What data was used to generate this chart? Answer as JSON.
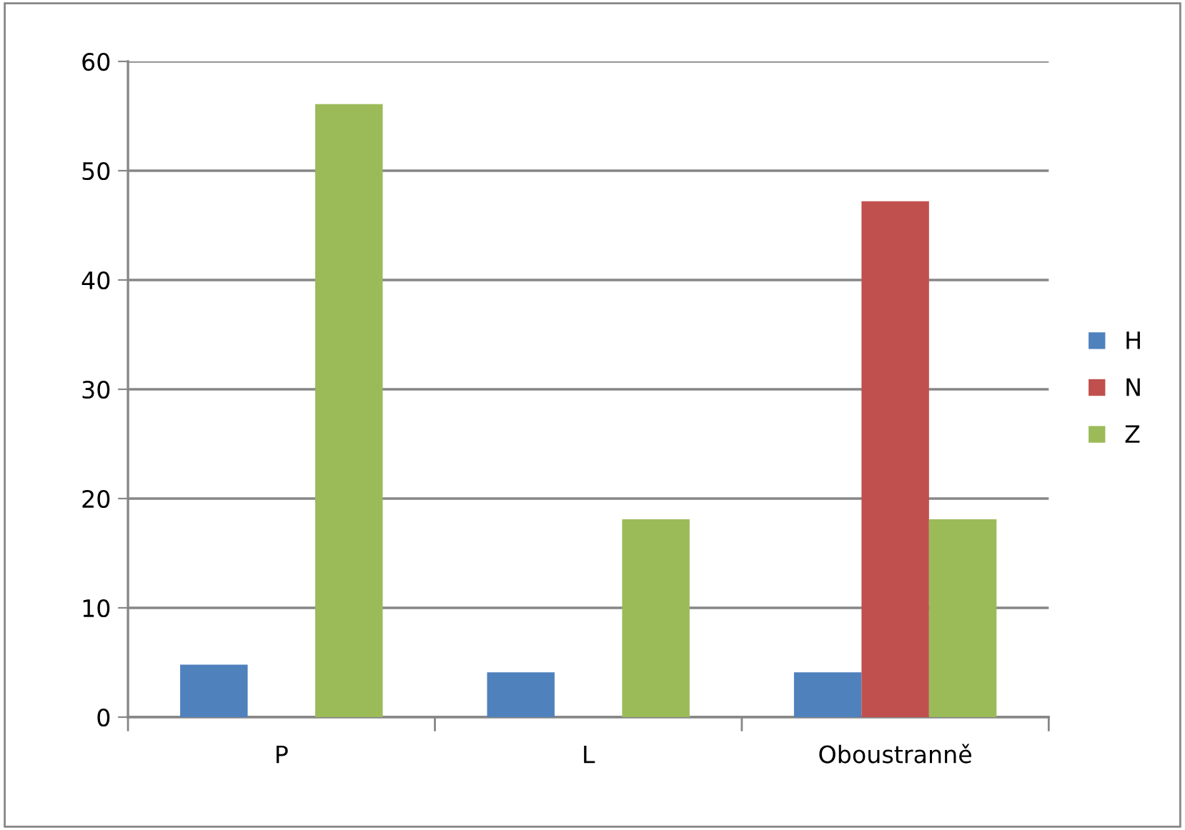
{
  "chart_data": {
    "type": "bar",
    "categories": [
      "P",
      "L",
      "Oboustranně"
    ],
    "series": [
      {
        "name": "H",
        "color": "#4f81bd",
        "values": [
          4.8,
          4.1,
          4.1
        ]
      },
      {
        "name": "N",
        "color": "#c0504d",
        "values": [
          0,
          0,
          47.2
        ]
      },
      {
        "name": "Z",
        "color": "#9bbb59",
        "values": [
          56.1,
          18.1,
          18.1
        ]
      }
    ],
    "ylim": [
      0,
      60
    ],
    "yticks": [
      0,
      10,
      20,
      30,
      40,
      50,
      60
    ],
    "grid": "y",
    "legend": "right"
  }
}
